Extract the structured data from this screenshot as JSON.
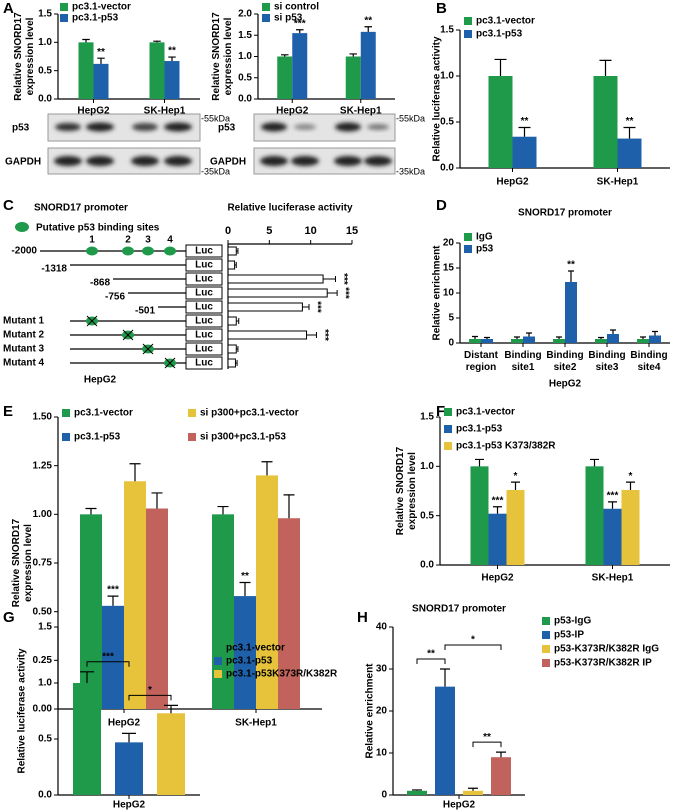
{
  "panel_labels": [
    "A",
    "B",
    "C",
    "D",
    "E",
    "F",
    "G",
    "H"
  ],
  "blots": [
    {
      "bands": [
        "p53",
        "GAPDH"
      ],
      "markers": [
        "-55kDa",
        "-35kDa"
      ]
    },
    {
      "bands": [
        "p53",
        "GAPDH"
      ],
      "markers": [
        "-55kDa",
        "-35kDa"
      ]
    }
  ],
  "promoter_diagram": {
    "title": "SNORD17 promoter",
    "legend": "Putative p53 binding sites",
    "site_numbers": [
      "1",
      "2",
      "3",
      "4"
    ],
    "reporter": "Luc",
    "cell_line": "HepG2"
  },
  "chart_data": [
    {
      "type": "bar",
      "ylabel": "Relative SNORD17 expression level",
      "categories": [
        "HepG2",
        "SK-Hep1"
      ],
      "series": [
        {
          "name": "pc3.1-vector",
          "color": "#1f9a4a",
          "values": [
            1.0,
            1.0
          ],
          "errors": [
            0.05,
            0.02
          ]
        },
        {
          "name": "pc3.1-p53",
          "color": "#1f60aa",
          "values": [
            0.62,
            0.67
          ],
          "errors": [
            0.1,
            0.07
          ],
          "annotations": [
            "**",
            "**"
          ]
        }
      ],
      "ylim": [
        0,
        1.5
      ],
      "yticks": [
        {
          "value": 0,
          "label": "0.0"
        },
        0.5,
        {
          "value": 1,
          "label": "1.0"
        },
        1.5
      ]
    },
    {
      "type": "bar",
      "ylabel": "Relative SNORD17 expression level",
      "categories": [
        "HepG2",
        "SK-Hep1"
      ],
      "series": [
        {
          "name": "si control",
          "color": "#1f9a4a",
          "values": [
            1.0,
            1.0
          ],
          "errors": [
            0.04,
            0.06
          ]
        },
        {
          "name": "si p53",
          "color": "#1f60aa",
          "values": [
            1.55,
            1.58
          ],
          "errors": [
            0.08,
            0.12
          ],
          "annotations": [
            "***",
            "**"
          ]
        }
      ],
      "ylim": [
        0,
        2
      ],
      "yticks": [
        {
          "value": 0,
          "label": "0.0"
        },
        0.5,
        {
          "value": 1,
          "label": "1.0"
        },
        1.5,
        {
          "value": 2,
          "label": "2.0"
        }
      ]
    },
    {
      "type": "bar",
      "ylabel": "Relative luciferase activity",
      "categories": [
        "HepG2",
        "SK-Hep1"
      ],
      "series": [
        {
          "name": "pc3.1-vector",
          "color": "#1f9a4a",
          "values": [
            1.0,
            1.0
          ],
          "errors": [
            0.18,
            0.17
          ]
        },
        {
          "name": "pc3.1-p53",
          "color": "#1f60aa",
          "values": [
            0.34,
            0.32
          ],
          "errors": [
            0.1,
            0.12
          ],
          "annotations": [
            "**",
            "**"
          ]
        }
      ],
      "ylim": [
        0,
        1.5
      ],
      "yticks": [
        {
          "value": 0,
          "label": "0.0"
        },
        0.5,
        {
          "value": 1,
          "label": "1.0"
        },
        1.5
      ]
    },
    {
      "type": "hbar",
      "title": "Relative luciferase activity",
      "categories": [
        "-2000",
        "-1318",
        "-868",
        "-756",
        "-501",
        "Mutant 1",
        "Mutant 2",
        "Mutant 3",
        "Mutant 4"
      ],
      "values": [
        1.0,
        0.8,
        11.5,
        12.0,
        9.0,
        1.0,
        9.5,
        1.0,
        0.9
      ],
      "errors": [
        0.2,
        0.2,
        1.5,
        1.2,
        0.8,
        0.3,
        1.2,
        0.2,
        0.2
      ],
      "annotations": [
        null,
        null,
        "***",
        "***",
        "***",
        null,
        "***",
        null,
        null
      ],
      "color": "#ffffff",
      "xlim": [
        0,
        15
      ],
      "xticks": [
        0,
        5,
        10,
        15
      ]
    },
    {
      "type": "bar",
      "title": "SNORD17 promoter",
      "ylabel": "Relative enrichment",
      "xlabel": "HepG2",
      "categories": [
        "Distant region",
        "Binding site1",
        "Binding site2",
        "Binding site3",
        "Binding site4"
      ],
      "series": [
        {
          "name": "IgG",
          "color": "#1f9a4a",
          "values": [
            0.8,
            0.8,
            0.8,
            0.8,
            0.8
          ],
          "errors": [
            0.5,
            0.4,
            0.4,
            0.3,
            0.4
          ]
        },
        {
          "name": "p53",
          "color": "#1f60aa",
          "values": [
            0.8,
            1.3,
            12.2,
            1.8,
            1.5
          ],
          "errors": [
            0.3,
            0.7,
            2.2,
            0.8,
            0.8
          ],
          "annotations": [
            null,
            null,
            "**",
            null,
            null
          ]
        }
      ],
      "ylim": [
        0,
        20
      ],
      "yticks": [
        0,
        5,
        10,
        15,
        20
      ]
    },
    {
      "type": "bar",
      "ylabel": "Relative SNORD17 expression level",
      "categories": [
        "HepG2",
        "SK-Hep1"
      ],
      "series": [
        {
          "name": "pc3.1-vector",
          "color": "#1f9a4a",
          "values": [
            1.0,
            1.0
          ],
          "errors": [
            0.03,
            0.04
          ]
        },
        {
          "name": "pc3.1-p53",
          "color": "#1f60aa",
          "values": [
            0.53,
            0.58
          ],
          "errors": [
            0.05,
            0.07
          ],
          "annotations": [
            "***",
            "**"
          ]
        },
        {
          "name": "si p300+pc3.1-vector",
          "color": "#e6c33a",
          "values": [
            1.17,
            1.2
          ],
          "errors": [
            0.09,
            0.07
          ]
        },
        {
          "name": "si p300+pc3.1-p53",
          "color": "#c1625c",
          "values": [
            1.03,
            0.98
          ],
          "errors": [
            0.08,
            0.12
          ]
        }
      ],
      "ylim": [
        0,
        1.5
      ],
      "yticks": [
        {
          "value": 0,
          "label": "0.00"
        },
        0.25,
        {
          "value": 0.5,
          "label": "0.50"
        },
        0.75,
        {
          "value": 1,
          "label": "1.00"
        },
        1.25,
        {
          "value": 1.5,
          "label": "1.50"
        }
      ]
    },
    {
      "type": "bar",
      "ylabel": "Relative SNORD17 expression level",
      "categories": [
        "HepG2",
        "SK-Hep1"
      ],
      "series": [
        {
          "name": "pc3.1-vector",
          "color": "#1f9a4a",
          "values": [
            1.0,
            1.0
          ],
          "errors": [
            0.07,
            0.07
          ]
        },
        {
          "name": "pc3.1-p53",
          "color": "#1f60aa",
          "values": [
            0.52,
            0.57
          ],
          "errors": [
            0.07,
            0.07
          ],
          "annotations": [
            "***",
            "***"
          ]
        },
        {
          "name": "pc3.1-p53 K373/382R",
          "color": "#e6c33a",
          "values": [
            0.76,
            0.76
          ],
          "errors": [
            0.08,
            0.08
          ],
          "annotations": [
            "*",
            "*"
          ]
        }
      ],
      "ylim": [
        0,
        1.5
      ],
      "yticks": [
        {
          "value": 0,
          "label": "0.0"
        },
        0.5,
        {
          "value": 1,
          "label": "1.0"
        },
        1.5
      ]
    },
    {
      "type": "bar",
      "ylabel": "Relative luciferase activity",
      "categories": [
        "HepG2"
      ],
      "series": [
        {
          "name": "pc3.1-vector",
          "color": "#1f9a4a",
          "values": [
            1.0
          ],
          "errors": [
            0.1
          ]
        },
        {
          "name": "pc3.1-p53",
          "color": "#1f60aa",
          "values": [
            0.47
          ],
          "errors": [
            0.08
          ]
        },
        {
          "name": "pc3.1-p53K373R/K382R",
          "color": "#e6c33a",
          "values": [
            0.73
          ],
          "errors": [
            0.07
          ]
        }
      ],
      "brackets": [
        {
          "between": [
            "pc3.1-vector",
            "pc3.1-p53"
          ],
          "label": "***"
        },
        {
          "between": [
            "pc3.1-p53",
            "pc3.1-p53K373R/K382R"
          ],
          "label": "*"
        }
      ],
      "ylim": [
        0,
        1.5
      ],
      "yticks": [
        {
          "value": 0,
          "label": "0.0"
        },
        0.5,
        {
          "value": 1,
          "label": "1.0"
        },
        1.5
      ]
    },
    {
      "type": "bar",
      "title": "SNORD17 promoter",
      "ylabel": "Relative enrichment",
      "categories": [
        "HepG2"
      ],
      "series": [
        {
          "name": "p53-IgG",
          "color": "#1f9a4a",
          "values": [
            1.0
          ],
          "errors": [
            0.2
          ]
        },
        {
          "name": "p53-IP",
          "color": "#1f60aa",
          "values": [
            25.8
          ],
          "errors": [
            4.2
          ]
        },
        {
          "name": "p53-K373R/K382R IgG",
          "color": "#e6c33a",
          "values": [
            1.0
          ],
          "errors": [
            0.6
          ]
        },
        {
          "name": "p53-K373R/K382R IP",
          "color": "#c1625c",
          "values": [
            9.0
          ],
          "errors": [
            1.2
          ]
        }
      ],
      "brackets": [
        {
          "between": [
            "p53-IgG",
            "p53-IP"
          ],
          "label": "**"
        },
        {
          "between": [
            "p53-IP",
            "p53-K373R/K382R IP"
          ],
          "label": "*"
        },
        {
          "between": [
            "p53-K373R/K382R IgG",
            "p53-K373R/K382R IP"
          ],
          "label": "**"
        }
      ],
      "ylim": [
        0,
        40
      ],
      "yticks": [
        0,
        10,
        20,
        30,
        40
      ]
    }
  ]
}
